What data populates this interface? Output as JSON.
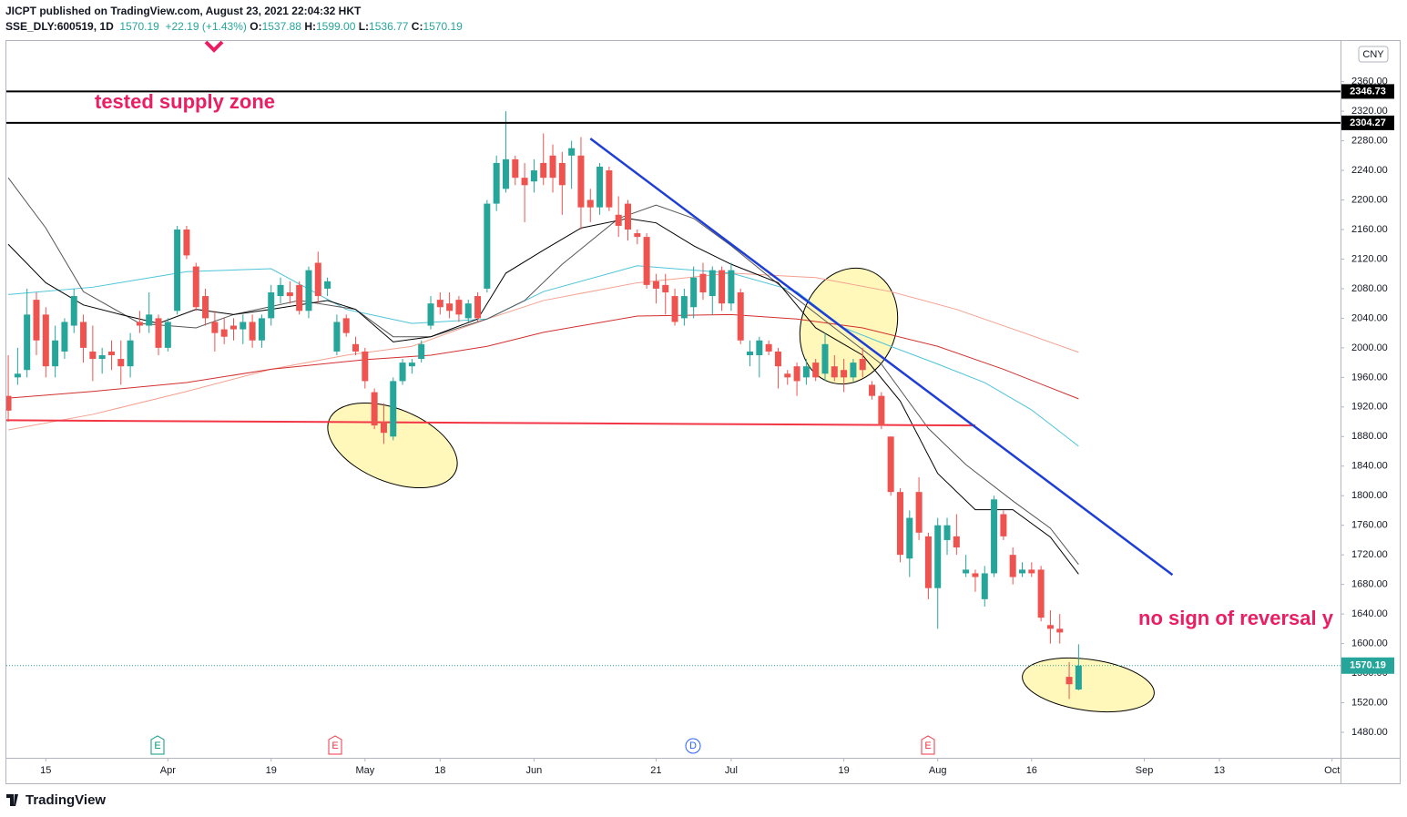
{
  "header": {
    "publisher": "JICPT published on TradingView.com, August 23, 2021 22:04:32 HKT",
    "symbol": "SSE_DLY:600519, 1D",
    "price": "1570.19",
    "change": "+22.19 (+1.43%)",
    "ohlc": [
      {
        "k": "O:",
        "v": "1537.88"
      },
      {
        "k": "H:",
        "v": "1599.00"
      },
      {
        "k": "L:",
        "v": "1536.77"
      },
      {
        "k": "C:",
        "v": "1570.19"
      }
    ]
  },
  "footer": {
    "brand": "TradingView"
  },
  "chart_data": {
    "type": "candlestick",
    "currency": "CNY",
    "annotations": [
      "tested supply zone",
      "no sign of reversal y"
    ],
    "events": [
      "E",
      "E",
      "D",
      "E"
    ],
    "up_color": "#26a69a",
    "down_color": "#ef5350",
    "xlim": [
      -0.2,
      141.9
    ],
    "ylim": [
      1445.5,
      2415
    ],
    "xticks": [
      {
        "value": 4,
        "label": "15"
      },
      {
        "value": 17,
        "label": "Apr"
      },
      {
        "value": 28,
        "label": "19"
      },
      {
        "value": 38,
        "label": "May"
      },
      {
        "value": 46,
        "label": "18"
      },
      {
        "value": 56,
        "label": "Jun"
      },
      {
        "value": 69,
        "label": "21"
      },
      {
        "value": 77,
        "label": "Jul"
      },
      {
        "value": 89,
        "label": "19"
      },
      {
        "value": 99,
        "label": "Aug"
      },
      {
        "value": 109,
        "label": "16"
      },
      {
        "value": 121,
        "label": "Sep"
      },
      {
        "value": 129,
        "label": "13"
      },
      {
        "value": 141,
        "label": "Oct"
      }
    ],
    "yticks": [
      {
        "value": 1480,
        "label": "1480.00"
      },
      {
        "value": 1520,
        "label": "1520.00"
      },
      {
        "value": 1560,
        "label": "1560.00"
      },
      {
        "value": 1600,
        "label": "1600.00"
      },
      {
        "value": 1640,
        "label": "1640.00"
      },
      {
        "value": 1680,
        "label": "1680.00"
      },
      {
        "value": 1720,
        "label": "1720.00"
      },
      {
        "value": 1760,
        "label": "1760.00"
      },
      {
        "value": 1800,
        "label": "1800.00"
      },
      {
        "value": 1840,
        "label": "1840.00"
      },
      {
        "value": 1880,
        "label": "1880.00"
      },
      {
        "value": 1920,
        "label": "1920.00"
      },
      {
        "value": 1960,
        "label": "1960.00"
      },
      {
        "value": 2000,
        "label": "2000.00"
      },
      {
        "value": 2040,
        "label": "2040.00"
      },
      {
        "value": 2080,
        "label": "2080.00"
      },
      {
        "value": 2120,
        "label": "2120.00"
      },
      {
        "value": 2160,
        "label": "2160.00"
      },
      {
        "value": 2200,
        "label": "2200.00"
      },
      {
        "value": 2240,
        "label": "2240.00"
      },
      {
        "value": 2280,
        "label": "2280.00"
      },
      {
        "value": 2320,
        "label": "2320.00"
      },
      {
        "value": 2360,
        "label": "2360.00"
      }
    ],
    "open": [
      1935,
      1960,
      1970,
      2065,
      2045,
      1975,
      1995,
      2030,
      2035,
      1995,
      1985,
      1995,
      1985,
      1975,
      2035,
      2030,
      2040,
      2000,
      2050,
      2160,
      2110,
      2070,
      2035,
      2025,
      2030,
      2025,
      2035,
      2010,
      2040,
      2070,
      2075,
      2085,
      2050,
      2115,
      2080,
      1995,
      2040,
      2005,
      1995,
      1940,
      1900,
      1880,
      1955,
      1975,
      1985,
      2030,
      2065,
      2060,
      2065,
      2040,
      2070,
      2080,
      2195,
      2215,
      2255,
      2230,
      2225,
      2250,
      2260,
      2250,
      2260,
      2260,
      2200,
      2190,
      2240,
      2180,
      2195,
      2155,
      2150,
      2090,
      2085,
      2070,
      2040,
      2055,
      2100,
      2070,
      2105,
      2060,
      2075,
      1990,
      1990,
      2005,
      1995,
      1965,
      1975,
      1960,
      1980,
      1965,
      1975,
      1970,
      1960,
      1985,
      1950,
      1935,
      1880,
      1805,
      1715,
      1805,
      1745,
      1675,
      1740,
      1745,
      1695,
      1695,
      1660,
      1695,
      1775,
      1720,
      1695,
      1700,
      1700,
      1625,
      1620,
      1555,
      1537.88
    ],
    "high": [
      1990,
      2000,
      2080,
      2075,
      2055,
      2030,
      2040,
      2080,
      2045,
      2030,
      2000,
      2010,
      2010,
      2020,
      2050,
      2075,
      2045,
      2040,
      2165,
      2165,
      2115,
      2080,
      2050,
      2040,
      2040,
      2045,
      2045,
      2045,
      2085,
      2095,
      2090,
      2090,
      2110,
      2130,
      2095,
      2045,
      2045,
      2015,
      2000,
      1945,
      1925,
      1960,
      1985,
      1985,
      2010,
      2070,
      2075,
      2075,
      2070,
      2065,
      2075,
      2200,
      2260,
      2320,
      2260,
      2250,
      2255,
      2290,
      2275,
      2265,
      2280,
      2285,
      2215,
      2250,
      2245,
      2205,
      2200,
      2160,
      2155,
      2100,
      2100,
      2080,
      2080,
      2110,
      2115,
      2110,
      2110,
      2115,
      2080,
      2010,
      2015,
      2010,
      2000,
      1970,
      1980,
      1985,
      1985,
      2020,
      1990,
      1985,
      1985,
      2000,
      1955,
      1940,
      1880,
      1810,
      1780,
      1825,
      1750,
      1770,
      1770,
      1775,
      1720,
      1700,
      1705,
      1800,
      1780,
      1730,
      1710,
      1710,
      1705,
      1645,
      1640,
      1575,
      1599
    ],
    "low": [
      1900,
      1950,
      1960,
      1990,
      1960,
      1960,
      1985,
      2020,
      1980,
      1955,
      1965,
      1970,
      1950,
      1960,
      2020,
      2020,
      1990,
      1995,
      2045,
      2120,
      2050,
      2030,
      1995,
      2005,
      2010,
      2005,
      2000,
      2000,
      2030,
      2060,
      2060,
      2045,
      2040,
      2060,
      2070,
      1990,
      2015,
      1990,
      1945,
      1890,
      1870,
      1875,
      1950,
      1965,
      1980,
      2025,
      2045,
      2040,
      2035,
      2035,
      2035,
      2075,
      2185,
      2210,
      2220,
      2170,
      2210,
      2220,
      2210,
      2180,
      2215,
      2160,
      2170,
      2180,
      2185,
      2150,
      2145,
      2140,
      2080,
      2060,
      2045,
      2030,
      2030,
      2040,
      2065,
      2045,
      2050,
      2050,
      2005,
      1975,
      1960,
      1990,
      1945,
      1950,
      1935,
      1950,
      1955,
      1955,
      1955,
      1940,
      1955,
      1960,
      1930,
      1890,
      1800,
      1710,
      1690,
      1740,
      1660,
      1620,
      1720,
      1720,
      1690,
      1670,
      1650,
      1690,
      1740,
      1680,
      1690,
      1690,
      1630,
      1600,
      1600,
      1525,
      1536.77
    ],
    "close": [
      1915,
      1965,
      2045,
      2010,
      1975,
      2010,
      2035,
      2070,
      2000,
      1985,
      1990,
      1990,
      1975,
      2010,
      2030,
      2045,
      2000,
      2035,
      2160,
      2125,
      2055,
      2040,
      2020,
      2015,
      2025,
      2035,
      2010,
      2040,
      2075,
      2085,
      2070,
      2050,
      2105,
      2070,
      2090,
      2035,
      2020,
      1995,
      1955,
      1895,
      1885,
      1955,
      1980,
      1980,
      2005,
      2060,
      2055,
      2050,
      2045,
      2060,
      2040,
      2195,
      2250,
      2255,
      2230,
      2220,
      2240,
      2230,
      2230,
      2220,
      2270,
      2190,
      2190,
      2245,
      2190,
      2165,
      2160,
      2150,
      2085,
      2080,
      2075,
      2035,
      2070,
      2095,
      2075,
      2105,
      2060,
      2105,
      2010,
      1995,
      2010,
      1995,
      1975,
      1960,
      1955,
      1975,
      1960,
      2005,
      1960,
      1960,
      1980,
      1970,
      1935,
      1895,
      1805,
      1720,
      1770,
      1750,
      1675,
      1760,
      1760,
      1730,
      1700,
      1690,
      1695,
      1795,
      1745,
      1690,
      1700,
      1695,
      1635,
      1620,
      1615,
      1545,
      1570.19
    ],
    "series": [
      {
        "color": "#f4a08f",
        "x": [
          0,
          9,
          19,
          28,
          36,
          43,
          51,
          57,
          67,
          77,
          86,
          94,
          101,
          108,
          114
        ],
        "values": [
          1889,
          1910,
          1941,
          1971,
          1990,
          2002,
          2039,
          2064,
          2088,
          2101,
          2095,
          2076,
          2052,
          2021,
          1994
        ]
      },
      {
        "color": "#d32f2f",
        "x": [
          0,
          9,
          19,
          28,
          38,
          45,
          51,
          57,
          67,
          77,
          84,
          91,
          99,
          106,
          114
        ],
        "values": [
          1932,
          1941,
          1953,
          1971,
          1984,
          1990,
          2002,
          2021,
          2043,
          2045,
          2039,
          2027,
          2002,
          1971,
          1931
        ]
      },
      {
        "color": "#4dc4d8",
        "x": [
          0,
          9,
          19,
          28,
          36,
          43,
          51,
          57,
          67,
          77,
          84,
          89,
          94,
          99,
          104,
          109,
          114
        ],
        "values": [
          2072,
          2082,
          2103,
          2107,
          2052,
          2033,
          2039,
          2076,
          2111,
          2101,
          2076,
          2027,
          2002,
          1978,
          1953,
          1916,
          1867
        ]
      },
      {
        "color": "#555555",
        "x": [
          0,
          4,
          8,
          14,
          20,
          24,
          31,
          37,
          41,
          45,
          51,
          55,
          59,
          65,
          69,
          73,
          77,
          83,
          88,
          93,
          98,
          102,
          107,
          111,
          114
        ],
        "values": [
          2230,
          2162,
          2076,
          2033,
          2027,
          2045,
          2064,
          2052,
          2015,
          2015,
          2039,
          2064,
          2113,
          2175,
          2193,
          2175,
          2138,
          2076,
          2027,
          1978,
          1891,
          1842,
          1793,
          1756,
          1707
        ]
      },
      {
        "color": "#000000",
        "x": [
          0,
          4,
          8,
          12,
          16,
          20,
          24,
          28,
          34,
          37,
          41,
          45,
          50,
          53,
          57,
          61,
          66,
          69,
          73,
          77,
          82,
          86,
          91,
          95,
          99,
          103,
          107,
          111,
          114
        ],
        "values": [
          2140,
          2088,
          2058,
          2045,
          2033,
          2052,
          2045,
          2052,
          2064,
          2052,
          2008,
          2015,
          2039,
          2101,
          2132,
          2162,
          2175,
          2169,
          2138,
          2113,
          2088,
          2027,
          1990,
          1928,
          1830,
          1781,
          1781,
          1744,
          1694
        ]
      }
    ],
    "price_lines": {
      "values": [
        2346.73,
        2304.27
      ],
      "color": "#000000"
    },
    "last_price": 1570.19,
    "last_color": "#26a69a",
    "support_line": {
      "x": [
        -0.2,
        103
      ],
      "values": [
        1902,
        1895
      ],
      "color": "#f23645"
    },
    "trend_line": {
      "x": [
        62,
        124
      ],
      "values": [
        2283,
        1693
      ],
      "color": "#1f3ed6"
    }
  }
}
